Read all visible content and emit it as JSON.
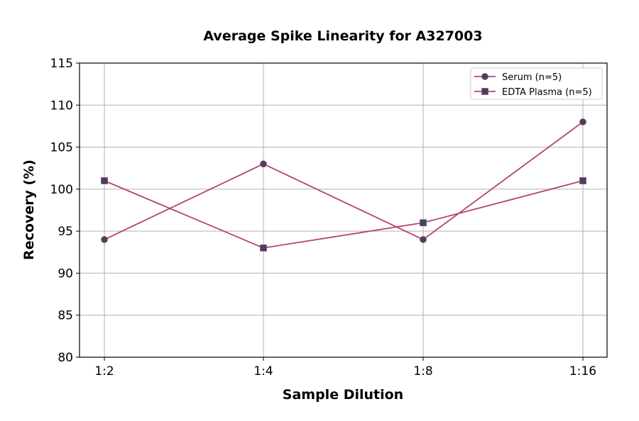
{
  "chart_data": {
    "type": "line",
    "title": "Average Spike Linearity for A327003",
    "xlabel": "Sample Dilution",
    "ylabel": "Recovery (%)",
    "categories": [
      "1:2",
      "1:4",
      "1:8",
      "1:16"
    ],
    "ylim": [
      80,
      115
    ],
    "yticks": [
      80,
      85,
      90,
      95,
      100,
      105,
      110,
      115
    ],
    "grid": true,
    "legend_position": "top-right",
    "series": [
      {
        "name": "Serum (n=5)",
        "marker": "circle",
        "values": [
          94,
          103,
          94,
          108
        ]
      },
      {
        "name": "EDTA Plasma (n=5)",
        "marker": "square",
        "values": [
          101,
          93,
          96,
          101
        ]
      }
    ],
    "colors": {
      "line": "#b5446e",
      "marker": "#34495e"
    }
  }
}
